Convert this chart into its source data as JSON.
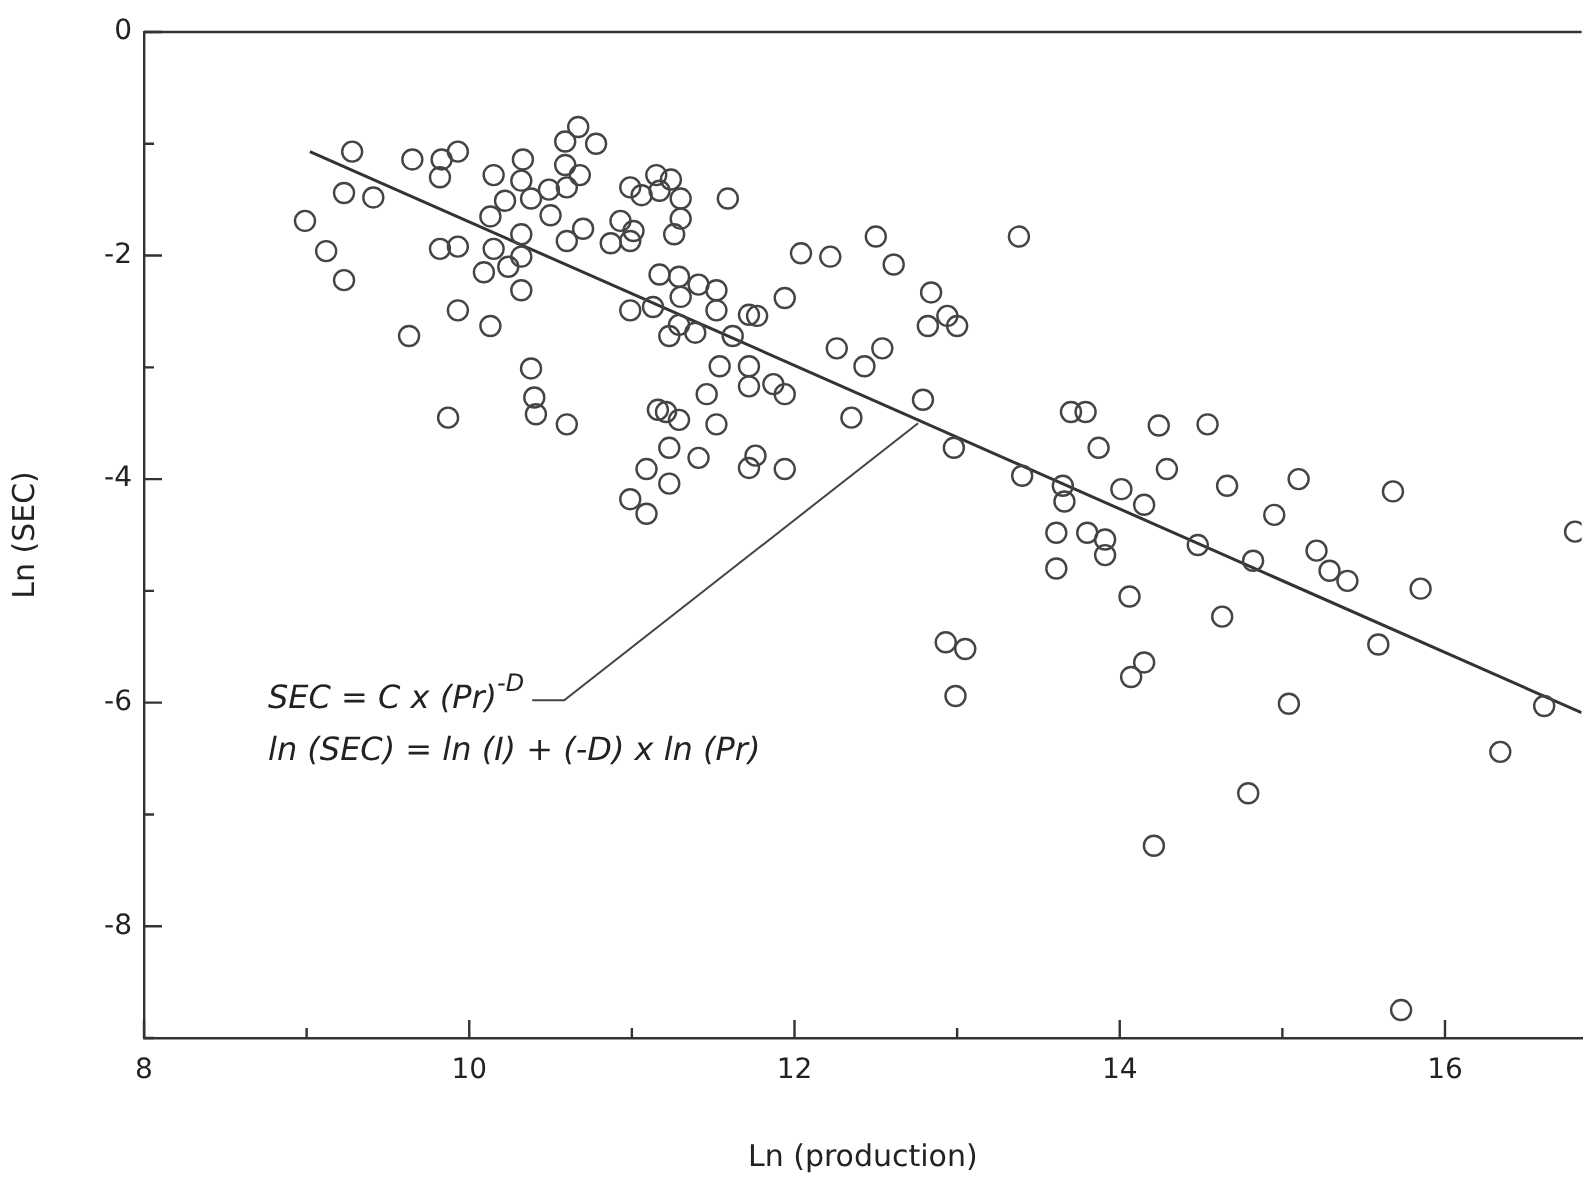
{
  "chart_data": {
    "type": "scatter",
    "xlabel": "Ln (production)",
    "ylabel": "Ln (SEC)",
    "xlim": [
      8,
      16.84
    ],
    "ylim": [
      -9,
      0
    ],
    "xticks": [
      8,
      {
        "value": 9,
        "label": null
      },
      10,
      {
        "value": 11,
        "label": null
      },
      12,
      {
        "value": 13,
        "label": null
      },
      14,
      {
        "value": 15,
        "label": null
      },
      16
    ],
    "yticks": [
      {
        "value": -9,
        "label": null
      },
      -8,
      {
        "value": -7,
        "label": null
      },
      -6,
      {
        "value": -5,
        "label": null
      },
      -4,
      {
        "value": -3,
        "label": null
      },
      -2,
      {
        "value": -1,
        "label": null
      },
      0
    ],
    "marker": "circle",
    "grid": false,
    "legend": false,
    "annotations": [
      {
        "text": "SEC = C x (Pr)$^{-D}$",
        "x": 12.76,
        "y": -3.5
      },
      "ln (SEC) = ln (I) + (-D) x ln (Pr)"
    ],
    "series": [
      {
        "type": "scatter",
        "color": "#444444",
        "x": [
          8.99,
          9.12,
          9.23,
          9.23,
          9.28,
          9.41,
          9.63,
          9.65,
          9.83,
          9.82,
          9.93,
          9.82,
          9.93,
          9.93,
          9.87,
          10.15,
          10.33,
          10.32,
          10.22,
          10.38,
          10.49,
          10.59,
          10.67,
          10.78,
          10.59,
          10.6,
          10.68,
          10.5,
          10.13,
          10.32,
          10.15,
          10.32,
          10.24,
          10.09,
          10.32,
          10.13,
          10.38,
          10.4,
          10.41,
          10.6,
          10.6,
          10.7,
          10.87,
          10.93,
          10.99,
          10.99,
          10.99,
          10.99,
          11.06,
          11.15,
          11.24,
          11.17,
          11.3,
          11.3,
          11.26,
          11.59,
          11.01,
          11.17,
          11.29,
          11.41,
          11.52,
          11.3,
          11.13,
          11.52,
          11.29,
          11.23,
          11.39,
          11.62,
          11.72,
          11.77,
          11.94,
          12.04,
          12.22,
          12.5,
          12.61,
          12.84,
          12.94,
          13.0,
          12.82,
          12.26,
          12.43,
          12.54,
          13.38,
          11.54,
          11.72,
          11.72,
          11.87,
          11.94,
          11.46,
          11.16,
          11.21,
          11.29,
          11.52,
          12.35,
          12.79,
          11.23,
          11.41,
          11.76,
          11.72,
          11.94,
          11.09,
          11.23,
          11.09,
          12.98,
          13.4,
          13.65,
          13.66,
          13.7,
          13.79,
          13.87,
          13.61,
          13.8,
          13.91,
          14.24,
          14.54,
          14.29,
          14.01,
          14.15,
          13.91,
          14.66,
          15.1,
          15.68,
          14.95,
          14.48,
          14.82,
          15.21,
          15.29,
          15.4,
          15.85,
          16.8,
          14.06,
          14.63,
          15.59,
          14.15,
          14.07,
          15.04,
          16.61,
          16.34,
          14.79,
          14.21,
          15.73,
          12.93,
          13.05,
          12.99,
          13.61
        ],
        "values": [
          -1.69,
          -1.96,
          -2.22,
          -1.44,
          -1.07,
          -1.48,
          -2.72,
          -1.14,
          -1.14,
          -1.3,
          -1.07,
          -1.94,
          -1.92,
          -2.49,
          -3.45,
          -1.28,
          -1.14,
          -1.33,
          -1.51,
          -1.49,
          -1.41,
          -0.98,
          -0.85,
          -1.0,
          -1.19,
          -1.39,
          -1.28,
          -1.64,
          -1.65,
          -1.81,
          -1.94,
          -2.01,
          -2.1,
          -2.15,
          -2.31,
          -2.63,
          -3.01,
          -3.27,
          -3.42,
          -3.51,
          -1.87,
          -1.76,
          -1.89,
          -1.69,
          -1.39,
          -1.87,
          -2.49,
          -4.18,
          -1.46,
          -1.28,
          -1.32,
          -1.42,
          -1.49,
          -1.67,
          -1.81,
          -1.49,
          -1.78,
          -2.17,
          -2.19,
          -2.26,
          -2.31,
          -2.37,
          -2.46,
          -2.49,
          -2.62,
          -2.72,
          -2.69,
          -2.72,
          -2.53,
          -2.54,
          -2.38,
          -1.98,
          -2.01,
          -1.83,
          -2.08,
          -2.33,
          -2.54,
          -2.63,
          -2.63,
          -2.83,
          -2.99,
          -2.83,
          -1.83,
          -2.99,
          -2.99,
          -3.17,
          -3.15,
          -3.24,
          -3.24,
          -3.38,
          -3.4,
          -3.47,
          -3.51,
          -3.45,
          -3.29,
          -3.72,
          -3.81,
          -3.79,
          -3.9,
          -3.91,
          -3.91,
          -4.04,
          -4.31,
          -3.72,
          -3.97,
          -4.06,
          -4.2,
          -3.4,
          -3.4,
          -3.72,
          -4.48,
          -4.48,
          -4.54,
          -3.52,
          -3.51,
          -3.91,
          -4.09,
          -4.23,
          -4.68,
          -4.06,
          -4.0,
          -4.11,
          -4.32,
          -4.59,
          -4.73,
          -4.64,
          -4.82,
          -4.91,
          -4.98,
          -4.47,
          -5.05,
          -5.23,
          -5.48,
          -5.64,
          -5.77,
          -6.01,
          -6.03,
          -6.44,
          -6.81,
          -7.28,
          -8.75,
          -5.46,
          -5.52,
          -5.94,
          -4.8
        ]
      },
      {
        "type": "line",
        "marker": "none",
        "color": "#333333",
        "x": [
          9.02,
          16.84
        ],
        "values": [
          -1.07,
          -6.09
        ]
      }
    ]
  }
}
